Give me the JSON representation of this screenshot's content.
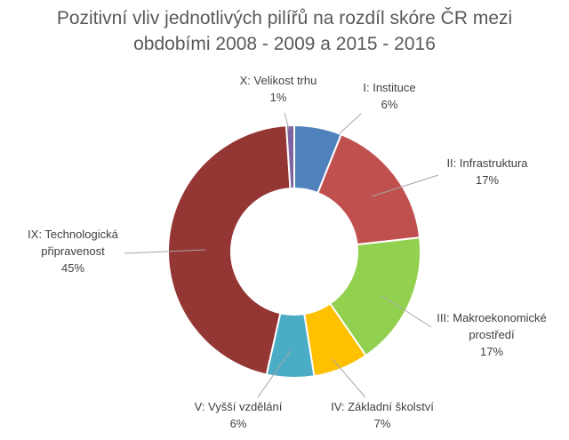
{
  "chart_data": {
    "type": "pie",
    "title_lines": [
      "Pozitivní vliv jednotlivých pilířů na rozdíl skóre ČR mezi",
      "obdobími 2008 - 2009 a 2015 - 2016"
    ],
    "slices": [
      {
        "name_lines": [
          "I: Instituce"
        ],
        "percent_label": "6%",
        "value": 6,
        "color": "#4f81bd"
      },
      {
        "name_lines": [
          "II: Infrastruktura"
        ],
        "percent_label": "17%",
        "value": 17,
        "color": "#c0504d"
      },
      {
        "name_lines": [
          "III: Makroekonomické",
          "prostředí"
        ],
        "percent_label": "17%",
        "value": 17,
        "color": "#92d050"
      },
      {
        "name_lines": [
          "IV: Základní školství"
        ],
        "percent_label": "7%",
        "value": 7,
        "color": "#ffc000"
      },
      {
        "name_lines": [
          "V: Vyšší vzdělání"
        ],
        "percent_label": "6%",
        "value": 6,
        "color": "#4bacc6"
      },
      {
        "name_lines": [
          "IX: Technologická",
          "připravenost"
        ],
        "percent_label": "45%",
        "value": 45,
        "color": "#943634"
      },
      {
        "name_lines": [
          "X: Velikost trhu"
        ],
        "percent_label": "1%",
        "value": 1,
        "color": "#8064a2"
      }
    ]
  }
}
